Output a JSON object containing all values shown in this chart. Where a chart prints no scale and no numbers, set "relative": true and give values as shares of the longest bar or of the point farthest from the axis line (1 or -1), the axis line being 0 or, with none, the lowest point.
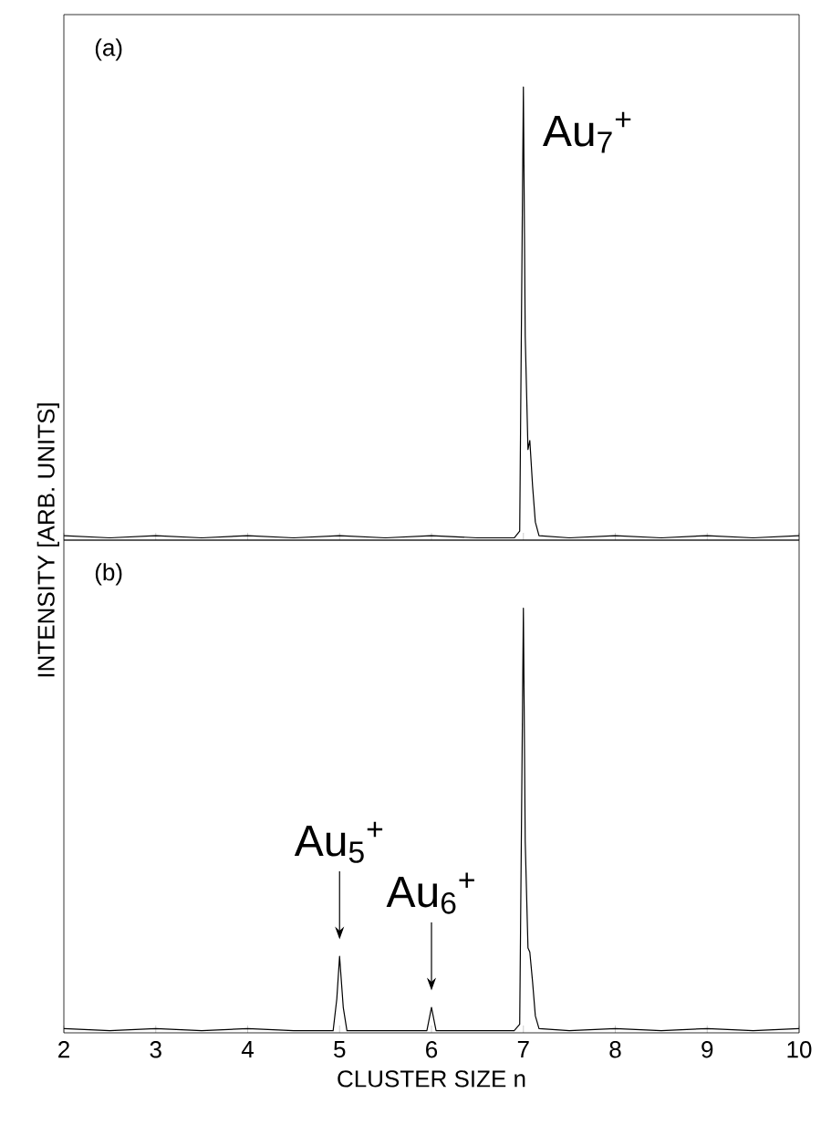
{
  "chart_data": [
    {
      "type": "line",
      "relative": true,
      "ylabel": "INTENSITY [ARB. UNITS]",
      "xlim": [
        2,
        10
      ],
      "xticks": [
        2,
        3,
        4,
        5,
        6,
        7,
        8,
        9,
        10
      ],
      "tick_labels": false,
      "marker": "none",
      "line_style": "solid",
      "annotations": [
        "(a)",
        {
          "text": "Au$_{7}$$^{+}$",
          "x": 7,
          "y": 1
        }
      ],
      "series": [
        {
          "color": "#000000",
          "x": [
            2,
            2.5,
            3,
            3.5,
            4,
            4.5,
            5,
            5.5,
            6,
            6.5,
            6.9,
            6.96,
            7.0,
            7.02,
            7.05,
            7.07,
            7.1,
            7.13,
            7.17,
            7.5,
            8,
            8.5,
            9,
            9.5,
            10
          ],
          "values": [
            0.01,
            0.005,
            0.01,
            0.005,
            0.01,
            0.005,
            0.01,
            0.005,
            0.01,
            0.005,
            0.005,
            0.02,
            1,
            0.45,
            0.2,
            0.22,
            0.12,
            0.04,
            0.01,
            0.005,
            0.01,
            0.005,
            0.01,
            0.005,
            0.01
          ]
        }
      ]
    },
    {
      "type": "line",
      "relative": true,
      "xlabel": "CLUSTER SIZE n",
      "xlim": [
        2,
        10
      ],
      "xticks": [
        2,
        3,
        4,
        5,
        6,
        7,
        8,
        9,
        10
      ],
      "tick_labels": "x",
      "marker": "none",
      "line_style": "solid",
      "annotations": [
        "(b)",
        "Au$_{5}$$^{+}$",
        "Au$_{6}$$^{+}$"
      ],
      "series": [
        {
          "color": "#000000",
          "x": [
            2,
            2.5,
            3,
            3.5,
            4,
            4.5,
            4.93,
            4.97,
            5.0,
            5.04,
            5.08,
            5.5,
            5.95,
            6.0,
            6.05,
            6.5,
            6.9,
            6.96,
            7.0,
            7.02,
            7.05,
            7.07,
            7.1,
            7.13,
            7.17,
            7.5,
            8,
            8.5,
            9,
            9.5,
            10
          ],
          "values": [
            0.01,
            0.005,
            0.01,
            0.005,
            0.01,
            0.005,
            0.005,
            0.08,
            0.18,
            0.06,
            0.005,
            0.005,
            0.005,
            0.06,
            0.005,
            0.005,
            0.005,
            0.02,
            1,
            0.45,
            0.2,
            0.19,
            0.12,
            0.04,
            0.01,
            0.005,
            0.01,
            0.005,
            0.01,
            0.005,
            0.01
          ]
        }
      ]
    }
  ]
}
